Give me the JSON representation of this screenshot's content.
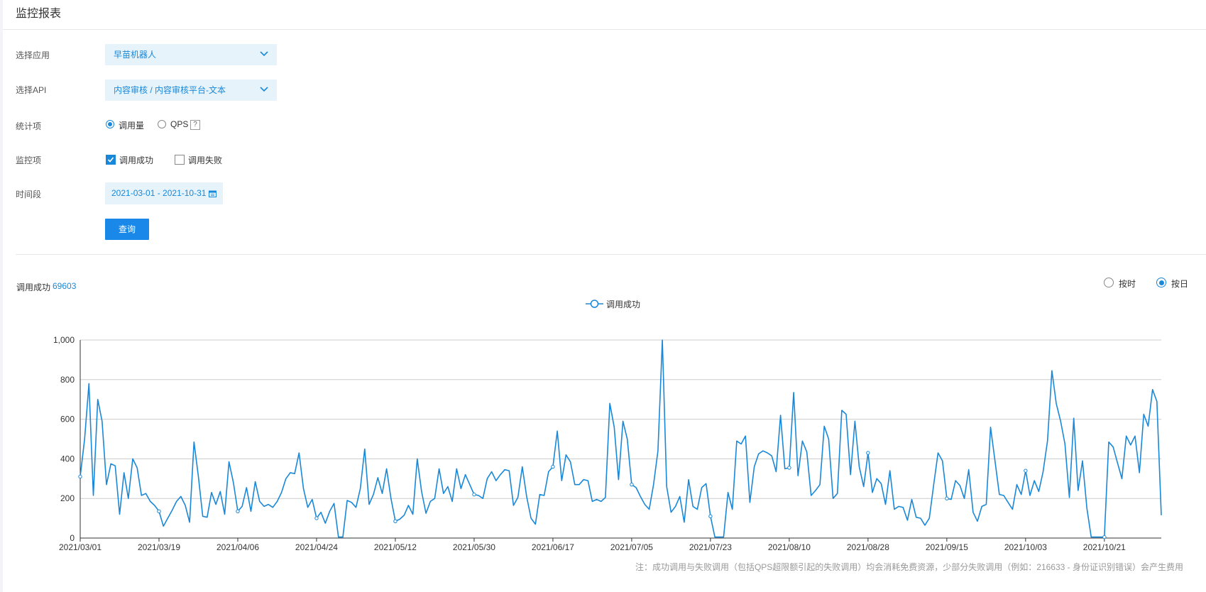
{
  "page": {
    "title": "监控报表"
  },
  "form": {
    "app": {
      "label": "选择应用",
      "value": "早苗机器人"
    },
    "api": {
      "label": "选择API",
      "value": "内容审核 / 内容审核平台-文本"
    },
    "stat": {
      "label": "统计项",
      "options": [
        "调用量",
        "QPS"
      ],
      "selected": "调用量",
      "help": "?"
    },
    "monitor": {
      "label": "监控项",
      "options": [
        {
          "label": "调用成功",
          "checked": true
        },
        {
          "label": "调用失败",
          "checked": false
        }
      ]
    },
    "period": {
      "label": "时间段",
      "value": "2021-03-01 - 2021-10-31"
    },
    "query_label": "查询"
  },
  "summary": {
    "label": "调用成功",
    "value": "69603"
  },
  "granularity": {
    "options": [
      "按时",
      "按日"
    ],
    "selected": "按日"
  },
  "colors": {
    "accent": "#1a88d8",
    "line": "#1a88d8",
    "field_bg": "#e6f3fb",
    "button": "#1a88e8"
  },
  "note": "注：成功调用与失败调用（包括QPS超限额引起的失败调用）均会消耗免费资源，少部分失败调用（例如：216633 - 身份证识别错误）会产生费用",
  "chart_data": {
    "type": "line",
    "legend": [
      "调用成功"
    ],
    "legend_position": "top-center",
    "grid": true,
    "x_start": "2021/03/01",
    "x_ticks": [
      "2021/03/01",
      "2021/03/19",
      "2021/04/06",
      "2021/04/24",
      "2021/05/12",
      "2021/05/30",
      "2021/06/17",
      "2021/07/05",
      "2021/07/23",
      "2021/08/10",
      "2021/08/28",
      "2021/09/15",
      "2021/10/03",
      "2021/10/21"
    ],
    "y_ticks": [
      "0",
      "200",
      "400",
      "600",
      "800",
      "1,000"
    ],
    "ylim": [
      0,
      1000
    ],
    "series": [
      {
        "name": "调用成功",
        "values": [
          310,
          500,
          780,
          215,
          700,
          590,
          270,
          375,
          365,
          120,
          330,
          200,
          400,
          355,
          215,
          225,
          185,
          165,
          135,
          60,
          100,
          140,
          185,
          210,
          165,
          80,
          485,
          310,
          110,
          105,
          230,
          170,
          235,
          120,
          385,
          280,
          135,
          160,
          255,
          135,
          285,
          185,
          160,
          170,
          155,
          185,
          230,
          300,
          330,
          325,
          430,
          250,
          155,
          195,
          100,
          130,
          75,
          135,
          175,
          5,
          5,
          190,
          180,
          155,
          250,
          450,
          170,
          220,
          305,
          225,
          350,
          200,
          85,
          95,
          115,
          165,
          120,
          400,
          235,
          125,
          185,
          200,
          350,
          225,
          260,
          185,
          350,
          250,
          320,
          270,
          220,
          215,
          200,
          300,
          335,
          290,
          320,
          345,
          340,
          165,
          205,
          360,
          210,
          100,
          70,
          220,
          215,
          335,
          360,
          540,
          290,
          420,
          385,
          270,
          270,
          295,
          290,
          185,
          195,
          185,
          205,
          680,
          560,
          295,
          590,
          500,
          270,
          255,
          210,
          170,
          145,
          270,
          440,
          1000,
          260,
          130,
          160,
          210,
          80,
          295,
          160,
          145,
          255,
          275,
          110,
          5,
          5,
          5,
          230,
          145,
          490,
          475,
          515,
          180,
          360,
          425,
          440,
          430,
          415,
          335,
          620,
          350,
          355,
          735,
          315,
          490,
          435,
          215,
          240,
          270,
          565,
          500,
          200,
          225,
          645,
          625,
          320,
          590,
          360,
          260,
          430,
          230,
          300,
          275,
          170,
          340,
          145,
          160,
          155,
          90,
          195,
          105,
          100,
          65,
          100,
          270,
          430,
          390,
          200,
          195,
          290,
          265,
          200,
          345,
          130,
          85,
          160,
          170,
          560,
          390,
          220,
          215,
          180,
          145,
          270,
          220,
          340,
          215,
          290,
          235,
          335,
          490,
          845,
          680,
          590,
          475,
          205,
          605,
          240,
          390,
          150,
          5,
          5,
          5,
          5,
          485,
          460,
          380,
          300,
          515,
          470,
          515,
          330,
          625,
          565,
          750,
          690,
          115
        ]
      }
    ]
  }
}
